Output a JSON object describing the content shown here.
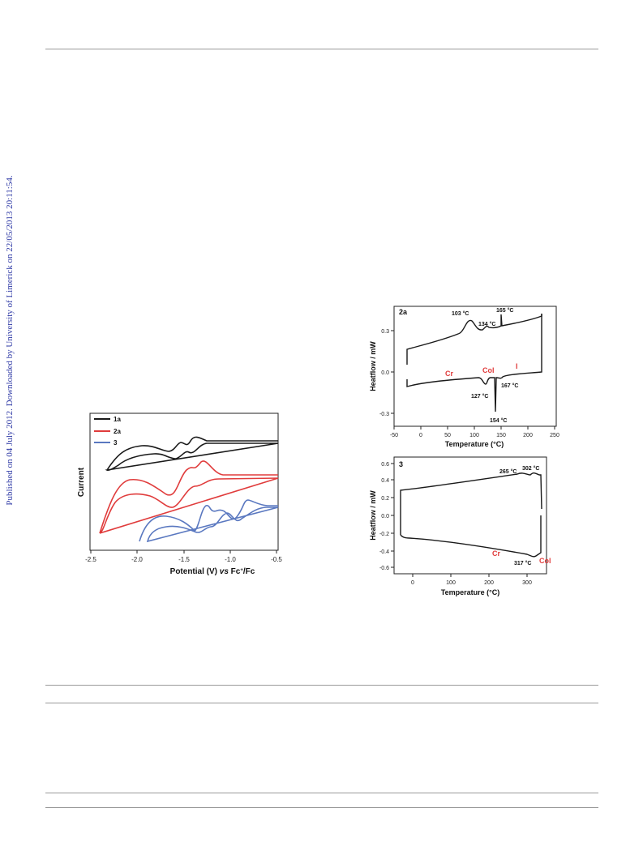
{
  "sidebar_text": "Published on 04 July 2012. Downloaded by University of Limerick on 22/05/2013 20:11:54.",
  "chart_data": [
    {
      "type": "line",
      "xlabel": "Potential (V) vs Fc+/Fc",
      "ylabel": "Current",
      "xlim": [
        -2.5,
        -0.5
      ],
      "x_ticks": [
        "-2.5",
        "-2.0",
        "-1.5",
        "-1.0",
        "-0.5"
      ],
      "legend_position": "top-left",
      "series": [
        {
          "name": "1a",
          "color": "#1a1a1a"
        },
        {
          "name": "2a",
          "color": "#e03c3c"
        },
        {
          "name": "3",
          "color": "#5a78c0"
        }
      ]
    },
    {
      "type": "line",
      "panel_label": "2a",
      "xlabel": "Temperature (°C)",
      "ylabel": "Heatflow / mW",
      "xlim": [
        -50,
        250
      ],
      "ylim": [
        -0.35,
        0.45
      ],
      "x_ticks": [
        "-50",
        "0",
        "50",
        "100",
        "150",
        "200",
        "250"
      ],
      "y_ticks": [
        "0.3",
        "0.0",
        "-0.3"
      ],
      "annotations": [
        "103 °C",
        "134 °C",
        "165 °C",
        "127 °C",
        "154 °C",
        "167 °C"
      ],
      "phase_labels": [
        "Cr",
        "Col",
        "I"
      ],
      "phase_color": "#e03c3c"
    },
    {
      "type": "line",
      "panel_label": "3",
      "xlabel": "Temperature (°C)",
      "ylabel": "Heatflow / mW",
      "xlim": [
        -40,
        360
      ],
      "ylim": [
        -0.7,
        0.7
      ],
      "x_ticks": [
        "0",
        "100",
        "200",
        "300"
      ],
      "y_ticks": [
        "0.6",
        "0.4",
        "0.2",
        "0.0",
        "-0.2",
        "-0.4",
        "-0.6"
      ],
      "annotations": [
        "265 °C",
        "302 °C",
        "317 °C"
      ],
      "phase_labels": [
        "Cr",
        "Col"
      ],
      "phase_color": "#e03c3c"
    }
  ]
}
